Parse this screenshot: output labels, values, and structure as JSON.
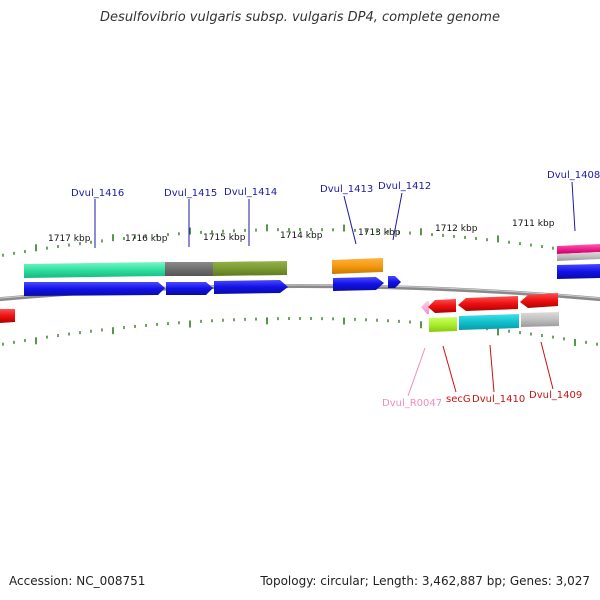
{
  "title": "Desulfovibrio vulgaris subsp. vulgaris DP4, complete genome",
  "footer": {
    "accession_label": "Accession:",
    "accession": "NC_008751",
    "topology_label": "Topology:",
    "topology": "circular",
    "length_label": "Length:",
    "length": "3,462,887 bp",
    "genes_label": "Genes:",
    "genes": "3,027"
  },
  "colors": {
    "backbone": "#8a8a8a",
    "tick": "#2e7d1e",
    "label_blue": "#1a1aa8",
    "label_red": "#cc1111",
    "label_pink": "#f08cc0",
    "cds_blue": "#1515e0"
  },
  "scale_labels": [
    "1717 kbp",
    "1716 kbp",
    "1715 kbp",
    "1714 kbp",
    "1713 kbp",
    "1712 kbp",
    "1711 kbp"
  ],
  "top_gene_labels": [
    "Dvul_1416",
    "Dvul_1415",
    "Dvul_1414",
    "Dvul_1413",
    "Dvul_1412",
    "Dvul_1408"
  ],
  "bottom_gene_labels": [
    "Dvul_R0047",
    "secG",
    "Dvul_1410",
    "Dvul_1409"
  ]
}
